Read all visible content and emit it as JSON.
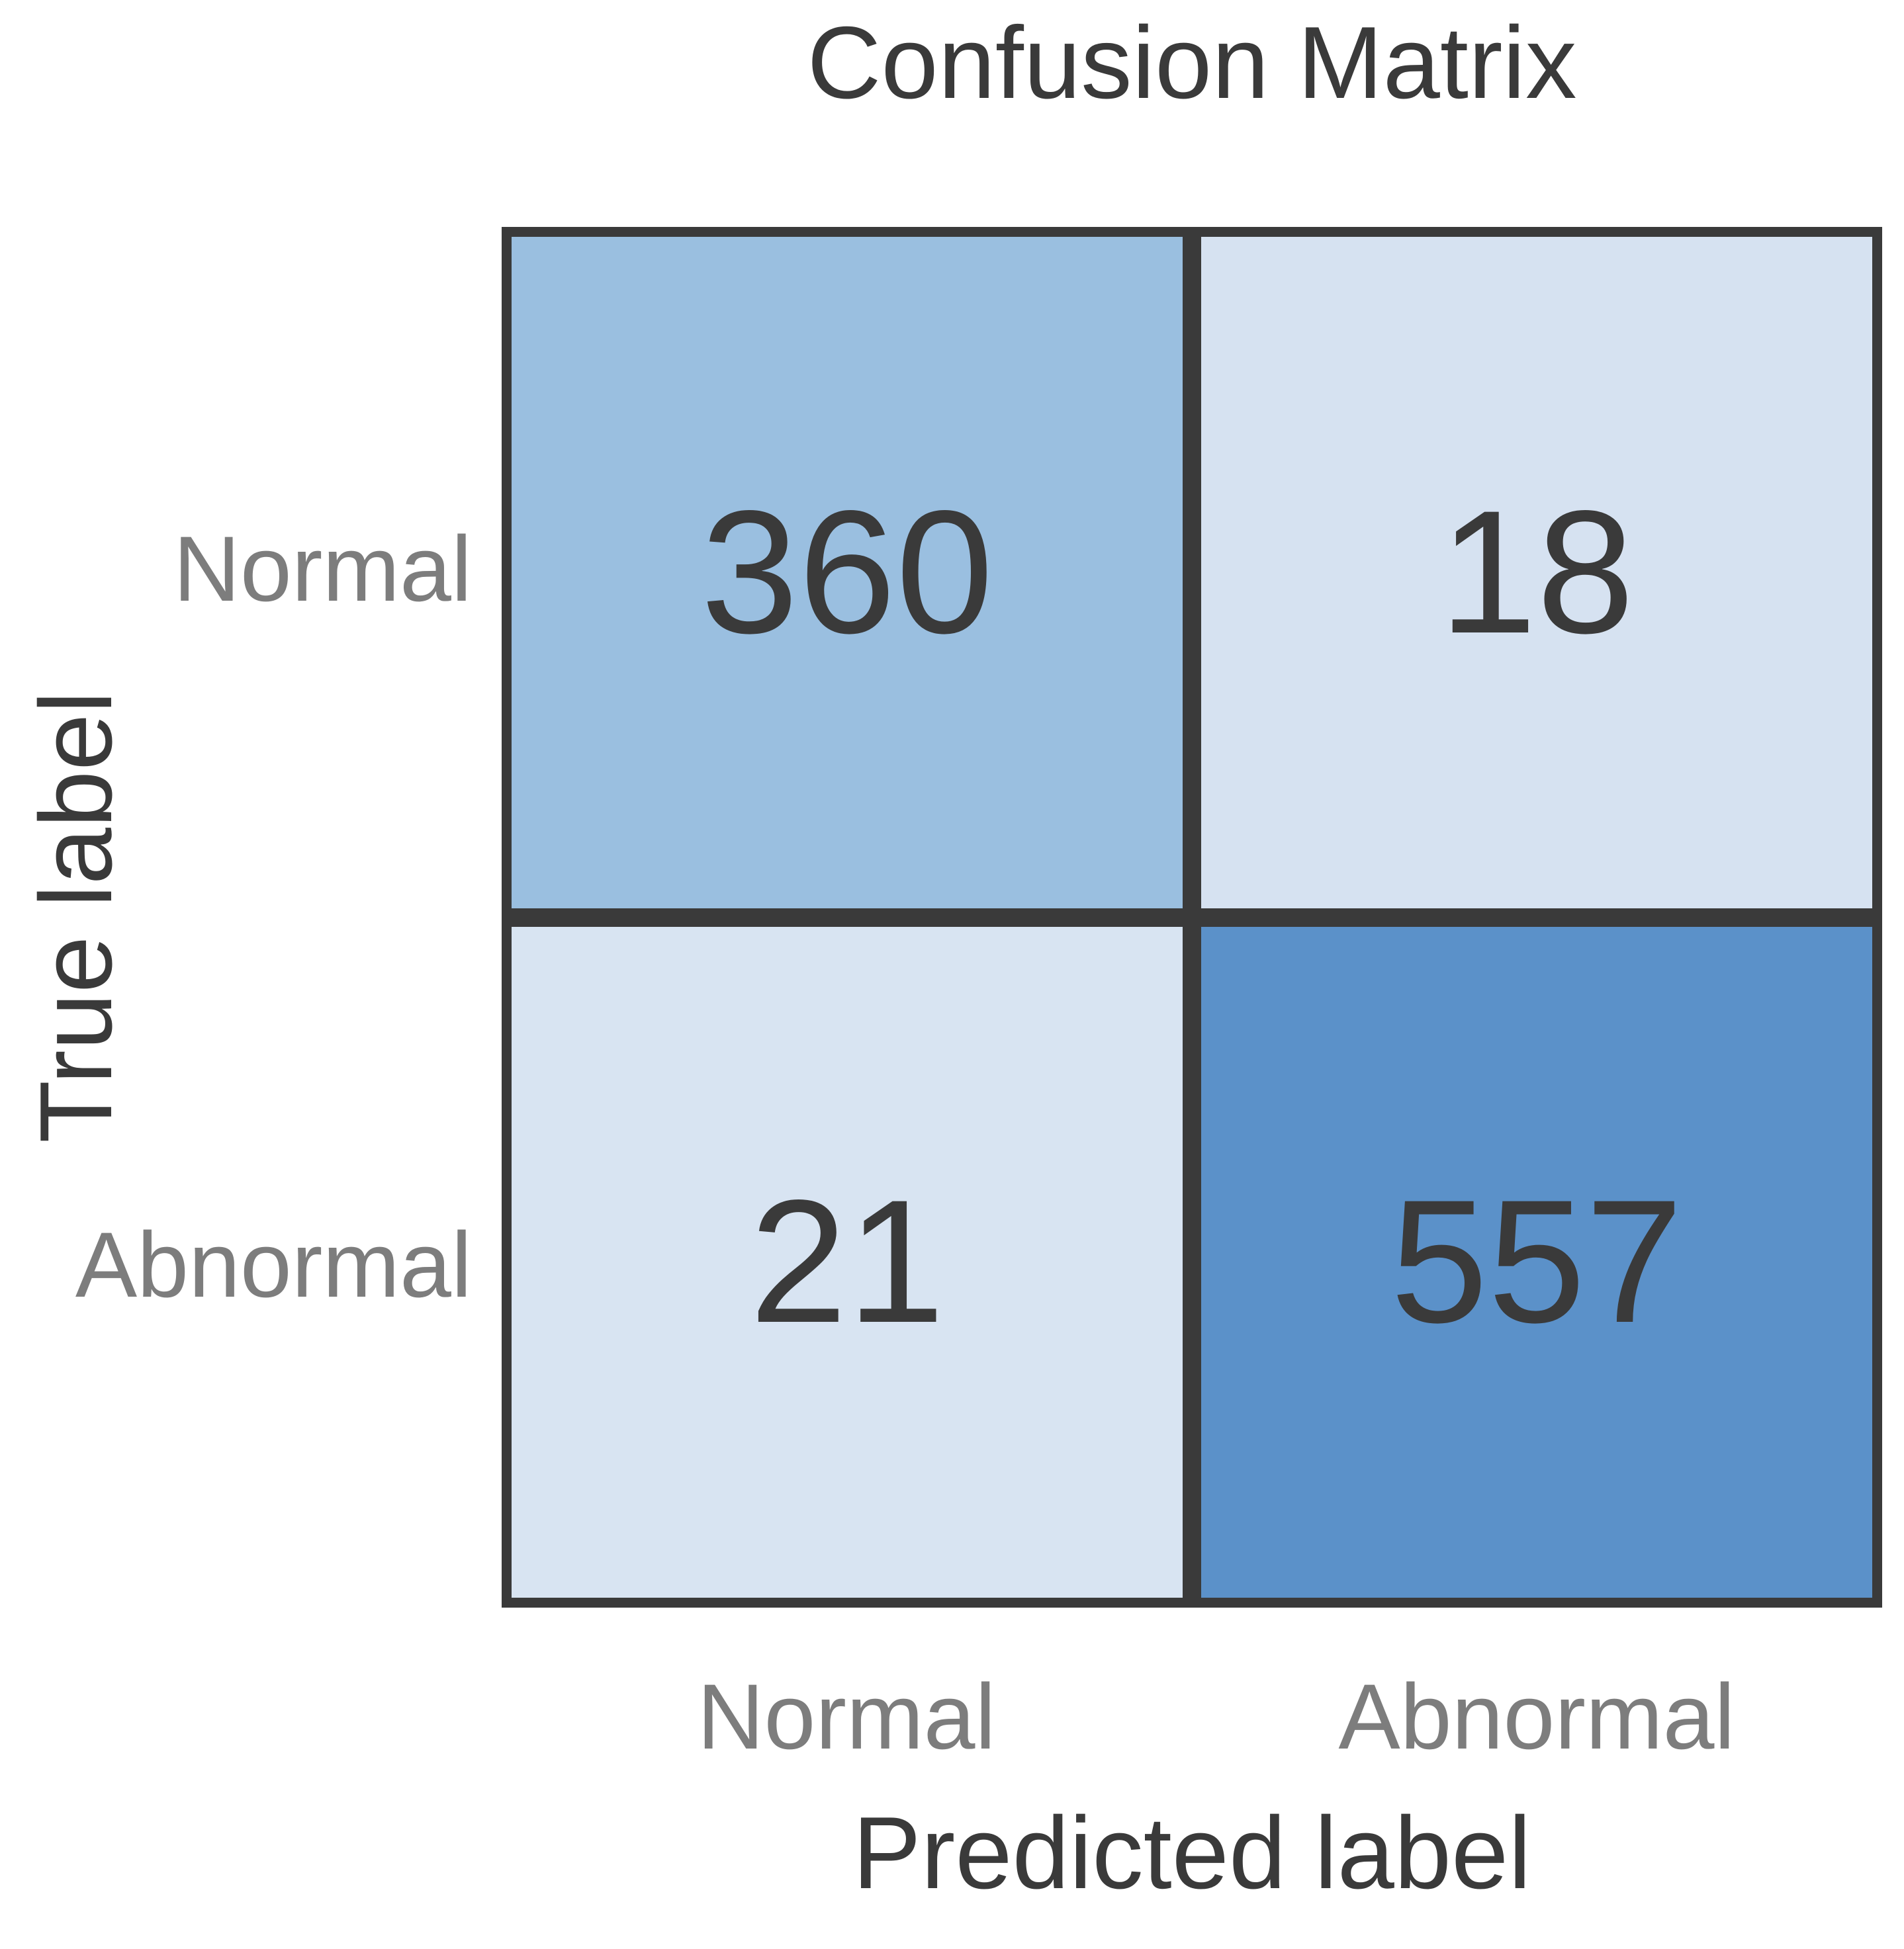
{
  "figure": {
    "title": "Confusion Matrix",
    "x_axis_label": "Predicted label",
    "y_axis_label": "True label"
  },
  "ticks": {
    "x": [
      "Normal",
      "Abnormal"
    ],
    "y": [
      "Normal",
      "Abnormal"
    ]
  },
  "values": {
    "true_normal_pred_normal": "360",
    "true_normal_pred_abnormal": "18",
    "true_abnormal_pred_normal": "21",
    "true_abnormal_pred_abnormal": "557"
  },
  "colors": {
    "background": "#ffffff",
    "grid_line": "#3a3a3a",
    "title_text": "#3a3a3a",
    "axis_label_text": "#3a3a3a",
    "tick_label_text": "#7d7d7d",
    "cell_value_text": "#3a3a3a",
    "cell_true_normal_pred_normal": "#9abfe0",
    "cell_true_normal_pred_abnormal": "#d6e2f1",
    "cell_true_abnormal_pred_normal": "#d8e4f2",
    "cell_true_abnormal_pred_abnormal": "#5b91c9"
  },
  "chart_data": {
    "type": "heatmap",
    "title": "Confusion Matrix",
    "xlabel": "Predicted label",
    "ylabel": "True label",
    "x_tick_labels": [
      "Normal",
      "Abnormal"
    ],
    "y_tick_labels": [
      "Normal",
      "Abnormal"
    ],
    "matrix": [
      [
        360,
        18
      ],
      [
        21,
        557
      ]
    ],
    "colormap": "Blues",
    "legend": "none",
    "grid": "off",
    "annotations": "cell counts shown in each cell"
  }
}
